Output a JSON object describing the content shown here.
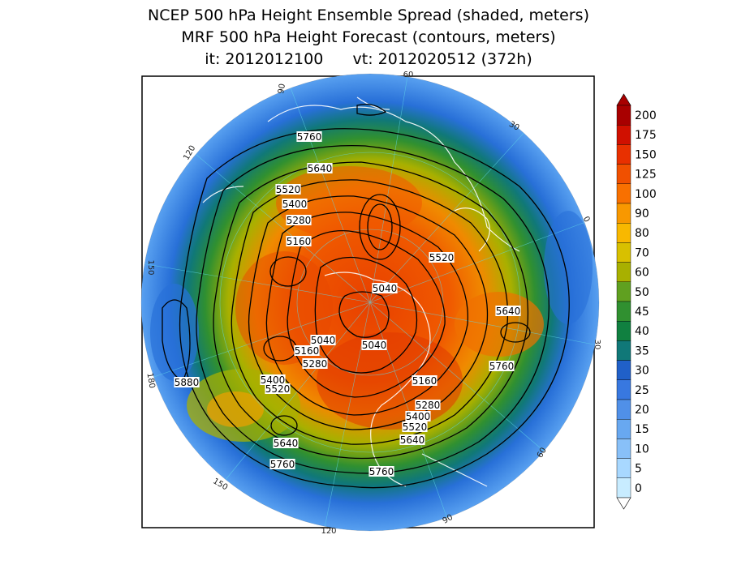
{
  "title": {
    "line1": "NCEP 500 hPa Height Ensemble Spread (shaded, meters)",
    "line2": "MRF 500 hPa Height Forecast (contours, meters)",
    "line3": "it: 2012012100      vt: 2012020512 (372h)"
  },
  "colorbar": {
    "levels": [
      "200",
      "175",
      "150",
      "125",
      "100",
      "90",
      "80",
      "70",
      "60",
      "50",
      "45",
      "40",
      "35",
      "30",
      "25",
      "20",
      "15",
      "10",
      "5",
      "0"
    ],
    "colors": [
      "#a80000",
      "#d01000",
      "#e83000",
      "#f05000",
      "#f87000",
      "#f89800",
      "#f8b800",
      "#d8c000",
      "#a8b000",
      "#60a020",
      "#309030",
      "#108040",
      "#107878",
      "#2060c8",
      "#3878e0",
      "#5090e8",
      "#68a8f0",
      "#88c0f8",
      "#a8d8ff",
      "#c8ecff"
    ]
  },
  "longitude_labels": [
    "90",
    "60",
    "30",
    "0",
    "30",
    "60",
    "90",
    "120",
    "150",
    "180",
    "150",
    "120"
  ],
  "contour_labels": [
    "5760",
    "5640",
    "5520",
    "5400",
    "5280",
    "5160",
    "5520",
    "5040",
    "5640",
    "5040",
    "5040",
    "5160",
    "5280",
    "5400",
    "5520",
    "5880",
    "5160",
    "5280",
    "5400",
    "5520",
    "5640",
    "5640",
    "5760",
    "5760",
    "5760"
  ]
}
